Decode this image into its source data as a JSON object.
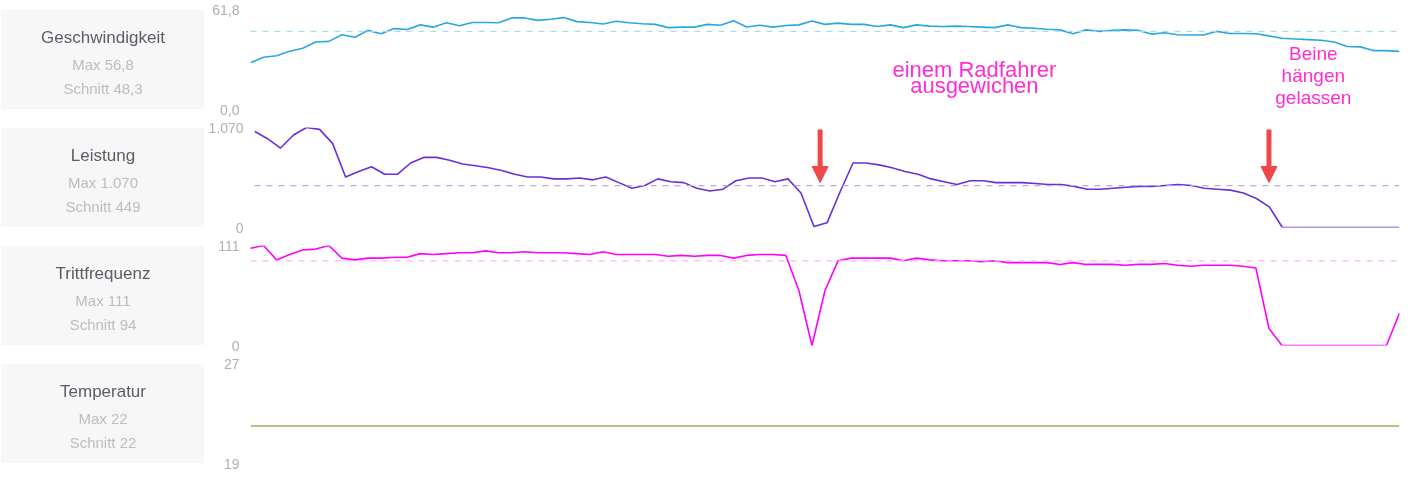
{
  "chart_data": [
    {
      "type": "line",
      "title": "Geschwindigkeit",
      "annotations": [
        "Max 56,8",
        "Schnitt 48,3",
        "einem Radfahrer ausgewichen",
        "Beine hängen gelassen"
      ],
      "categories": [
        null,
        null,
        null,
        null,
        null,
        null,
        null,
        null,
        null,
        null,
        null,
        null,
        null,
        null,
        null,
        null,
        null,
        null,
        null,
        null,
        null,
        null,
        null,
        null,
        null,
        null,
        null,
        null,
        null,
        null,
        null,
        null,
        null,
        null,
        null,
        null,
        null,
        null,
        null,
        null,
        null,
        null,
        null,
        null,
        null,
        null,
        null,
        null,
        null,
        null,
        null,
        null,
        null,
        null,
        null,
        null,
        null,
        null,
        null,
        null,
        null,
        null,
        null,
        null,
        null,
        null,
        null,
        null,
        null,
        null,
        null,
        null,
        null,
        null,
        null,
        null,
        null,
        null,
        null,
        null,
        null,
        null,
        null,
        null,
        null,
        null,
        null,
        null,
        null
      ],
      "series": [
        {
          "color": "#29a8e0",
          "values": [
            28.9,
            32.3,
            33.2,
            36.0,
            37.9,
            41.7,
            42.1,
            46.2,
            44.7,
            48.9,
            46.8,
            50.0,
            49.4,
            52.3,
            50.9,
            53.6,
            51.7,
            53.8,
            53.8,
            53.6,
            56.6,
            56.6,
            55.1,
            55.8,
            56.8,
            54.3,
            53.8,
            52.8,
            54.5,
            53.6,
            53.0,
            52.6,
            50.6,
            50.9,
            50.9,
            52.6,
            52.1,
            54.9,
            51.0,
            52.1,
            50.9,
            51.9,
            52.3,
            54.7,
            52.6,
            53.4,
            52.6,
            52.6,
            51.3,
            52.3,
            50.6,
            52.3,
            51.5,
            51.3,
            51.5,
            51.3,
            50.9,
            50.6,
            52.3,
            50.6,
            50.2,
            49.6,
            49.2,
            46.8,
            49.2,
            48.3,
            48.9,
            49.2,
            48.9,
            46.6,
            47.4,
            46.2,
            46.0,
            46.0,
            48.3,
            47.0,
            47.0,
            46.8,
            45.5,
            44.0,
            43.6,
            43.2,
            42.8,
            41.7,
            38.9,
            38.7,
            36.4,
            36.4,
            35.9
          ]
        }
      ],
      "ylim": [
        0,
        61.8
      ],
      "yticks": [
        {
          "value": 0,
          "label": "0,0"
        },
        {
          "value": 61.8,
          "label": "61,8"
        }
      ],
      "tick_labels": "y",
      "ref_lines": [
        {
          "axis": "y",
          "value": 48.3,
          "color": "#a8dcef",
          "line_style": "dashed"
        }
      ]
    },
    {
      "type": "line",
      "title": "Leistung",
      "annotations": [
        "Max 1.070",
        "Schnitt 449"
      ],
      "categories": [
        null,
        null,
        null,
        null,
        null,
        null,
        null,
        null,
        null,
        null,
        null,
        null,
        null,
        null,
        null,
        null,
        null,
        null,
        null,
        null,
        null,
        null,
        null,
        null,
        null,
        null,
        null,
        null,
        null,
        null,
        null,
        null,
        null,
        null,
        null,
        null,
        null,
        null,
        null,
        null,
        null,
        null,
        null,
        null,
        null,
        null,
        null,
        null,
        null,
        null,
        null,
        null,
        null,
        null,
        null,
        null,
        null,
        null,
        null,
        null,
        null,
        null,
        null,
        null,
        null,
        null,
        null,
        null,
        null,
        null,
        null,
        null,
        null,
        null,
        null,
        null,
        null,
        null,
        null,
        null,
        null,
        null,
        null,
        null,
        null,
        null,
        null,
        null,
        null
      ],
      "series": [
        {
          "color": "#6a30d6",
          "values": [
            1030,
            950,
            850,
            990,
            1070,
            1050,
            900,
            540,
            600,
            650,
            570,
            570,
            690,
            750,
            750,
            720,
            680,
            660,
            640,
            610,
            570,
            540,
            540,
            520,
            520,
            530,
            510,
            540,
            480,
            420,
            450,
            520,
            490,
            480,
            420,
            390,
            410,
            500,
            530,
            530,
            490,
            520,
            370,
            10,
            50,
            380,
            690,
            690,
            670,
            640,
            600,
            570,
            520,
            490,
            460,
            500,
            500,
            480,
            480,
            480,
            470,
            460,
            460,
            440,
            410,
            410,
            420,
            430,
            440,
            440,
            450,
            460,
            450,
            420,
            410,
            400,
            370,
            310,
            220,
            0,
            0,
            0,
            0,
            0,
            0,
            0,
            0,
            0,
            0
          ]
        }
      ],
      "ylim": [
        0,
        1070
      ],
      "yticks": [
        0,
        {
          "value": 1070,
          "label": "1.070"
        }
      ],
      "tick_labels": "y",
      "ref_lines": [
        {
          "axis": "y",
          "value": 449,
          "color": "#bba6ec",
          "line_style": "dashed"
        }
      ]
    },
    {
      "type": "line",
      "title": "Trittfrequenz",
      "annotations": [
        "Max 111",
        "Schnitt 94"
      ],
      "categories": [
        null,
        null,
        null,
        null,
        null,
        null,
        null,
        null,
        null,
        null,
        null,
        null,
        null,
        null,
        null,
        null,
        null,
        null,
        null,
        null,
        null,
        null,
        null,
        null,
        null,
        null,
        null,
        null,
        null,
        null,
        null,
        null,
        null,
        null,
        null,
        null,
        null,
        null,
        null,
        null,
        null,
        null,
        null,
        null,
        null,
        null,
        null,
        null,
        null,
        null,
        null,
        null,
        null,
        null,
        null,
        null,
        null,
        null,
        null,
        null,
        null,
        null,
        null,
        null,
        null,
        null,
        null,
        null,
        null,
        null,
        null,
        null,
        null,
        null,
        null,
        null,
        null,
        null,
        null,
        null,
        null,
        null,
        null,
        null,
        null,
        null,
        null,
        null,
        null
      ],
      "series": [
        {
          "color": "#ff00ff",
          "values": [
            108,
            111,
            95,
            101,
            106,
            107,
            111,
            97,
            95,
            97,
            97,
            98,
            98,
            102,
            101,
            102,
            103,
            103,
            105,
            103,
            103,
            104,
            103,
            103,
            103,
            102,
            101,
            104,
            101,
            101,
            101,
            101,
            99,
            100,
            99,
            100,
            100,
            97,
            100,
            101,
            101,
            100,
            61,
            0,
            61,
            94,
            97,
            97,
            97,
            97,
            94,
            97,
            95,
            94,
            94,
            94,
            93,
            94,
            92,
            92,
            92,
            92,
            90,
            92,
            90,
            90,
            90,
            89,
            90,
            90,
            91,
            89,
            88,
            89,
            89,
            89,
            88,
            86,
            19,
            0,
            0,
            0,
            0,
            0,
            0,
            0,
            0,
            0,
            36
          ]
        }
      ],
      "ylim": [
        0,
        111
      ],
      "yticks": [
        0,
        111
      ],
      "tick_labels": "y",
      "ref_lines": [
        {
          "axis": "y",
          "value": 94,
          "color": "#ffb0ff",
          "line_style": "dashed"
        }
      ]
    },
    {
      "type": "line",
      "title": "Temperatur",
      "annotations": [
        "Max 22",
        "Schnitt 22"
      ],
      "categories": [
        null,
        null,
        null,
        null,
        null,
        null,
        null,
        null,
        null,
        null,
        null,
        null,
        null,
        null,
        null,
        null,
        null,
        null,
        null,
        null,
        null,
        null,
        null,
        null,
        null,
        null,
        null,
        null,
        null,
        null,
        null,
        null,
        null,
        null,
        null,
        null,
        null,
        null,
        null,
        null,
        null,
        null,
        null,
        null,
        null,
        null,
        null,
        null,
        null,
        null,
        null,
        null,
        null,
        null,
        null,
        null,
        null,
        null,
        null,
        null,
        null,
        null,
        null,
        null,
        null,
        null,
        null,
        null,
        null,
        null,
        null,
        null,
        null,
        null,
        null,
        null,
        null,
        null,
        null,
        null,
        null,
        null,
        null,
        null,
        null,
        null,
        null,
        null,
        null
      ],
      "series": [
        {
          "color": "#b5a458",
          "values": [
            22,
            22,
            22,
            22,
            22,
            22,
            22,
            22,
            22,
            22,
            22,
            22,
            22,
            22,
            22,
            22,
            22,
            22,
            22,
            22,
            22,
            22,
            22,
            22,
            22,
            22,
            22,
            22,
            22,
            22,
            22,
            22,
            22,
            22,
            22,
            22,
            22,
            22,
            22,
            22,
            22,
            22,
            22,
            22,
            22,
            22,
            22,
            22,
            22,
            22,
            22,
            22,
            22,
            22,
            22,
            22,
            22,
            22,
            22,
            22,
            22,
            22,
            22,
            22,
            22,
            22,
            22,
            22,
            22,
            22,
            22,
            22,
            22,
            22,
            22,
            22,
            22,
            22,
            22,
            22,
            22,
            22,
            22,
            22,
            22,
            22,
            22,
            22,
            22
          ]
        }
      ],
      "ylim": [
        19,
        27
      ],
      "yticks": [
        19,
        27
      ],
      "tick_labels": "y"
    }
  ]
}
